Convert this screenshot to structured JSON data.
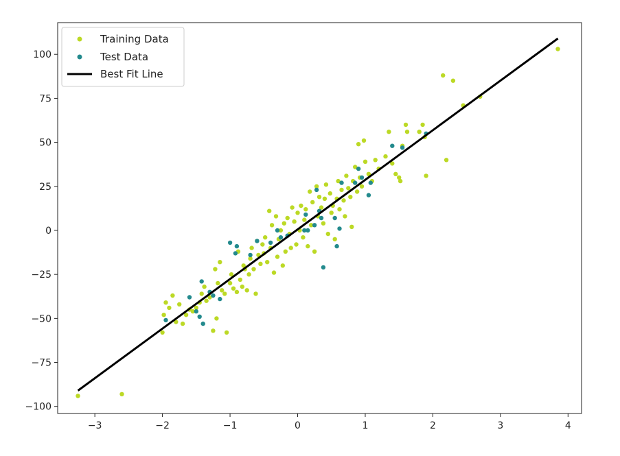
{
  "chart_data": {
    "type": "scatter",
    "title": "",
    "xlabel": "",
    "ylabel": "",
    "xlim": [
      -3.55,
      4.2
    ],
    "ylim": [
      -104,
      118
    ],
    "xticks": [
      -3,
      -2,
      -1,
      0,
      1,
      2,
      3,
      4
    ],
    "yticks": [
      -100,
      -75,
      -50,
      -25,
      0,
      25,
      50,
      75,
      100
    ],
    "xtick_labels": [
      "−3",
      "−2",
      "−1",
      "0",
      "1",
      "2",
      "3",
      "4"
    ],
    "ytick_labels": [
      "−100",
      "−75",
      "−50",
      "−25",
      "0",
      "25",
      "50",
      "75",
      "100"
    ],
    "grid": false,
    "legend_position": "top-left",
    "legend": [
      {
        "label": "Training Data",
        "kind": "marker",
        "color": "#bcd925"
      },
      {
        "label": "Test Data",
        "kind": "marker",
        "color": "#238a8d"
      },
      {
        "label": "Best Fit Line",
        "kind": "line",
        "color": "#000000"
      }
    ],
    "series": [
      {
        "name": "Training Data",
        "color": "#bcd925",
        "points": [
          [
            -3.25,
            -94
          ],
          [
            -2.6,
            -93
          ],
          [
            -2.0,
            -58
          ],
          [
            -1.95,
            -41
          ],
          [
            -1.98,
            -48
          ],
          [
            -1.9,
            -44
          ],
          [
            -1.85,
            -37
          ],
          [
            -1.8,
            -52
          ],
          [
            -1.75,
            -42
          ],
          [
            -1.7,
            -53
          ],
          [
            -1.65,
            -48
          ],
          [
            -1.6,
            -45
          ],
          [
            -1.55,
            -46
          ],
          [
            -1.5,
            -44
          ],
          [
            -1.45,
            -41
          ],
          [
            -1.42,
            -36
          ],
          [
            -1.38,
            -32
          ],
          [
            -1.35,
            -40
          ],
          [
            -1.3,
            -38
          ],
          [
            -1.25,
            -57
          ],
          [
            -1.2,
            -50
          ],
          [
            -1.22,
            -22
          ],
          [
            -1.18,
            -30
          ],
          [
            -1.15,
            -18
          ],
          [
            -1.12,
            -34
          ],
          [
            -1.05,
            -58
          ],
          [
            -1.08,
            -36
          ],
          [
            -1.0,
            -30
          ],
          [
            -0.98,
            -25
          ],
          [
            -0.95,
            -33
          ],
          [
            -0.9,
            -35
          ],
          [
            -0.88,
            -12
          ],
          [
            -0.85,
            -28
          ],
          [
            -0.82,
            -32
          ],
          [
            -0.8,
            -20
          ],
          [
            -0.78,
            -22
          ],
          [
            -0.75,
            -34
          ],
          [
            -0.72,
            -25
          ],
          [
            -0.7,
            -16
          ],
          [
            -0.68,
            -10
          ],
          [
            -0.65,
            -22
          ],
          [
            -0.62,
            -36
          ],
          [
            -0.6,
            -6
          ],
          [
            -0.58,
            -14
          ],
          [
            -0.55,
            -19
          ],
          [
            -0.52,
            -8
          ],
          [
            -0.5,
            -13
          ],
          [
            -0.48,
            -4
          ],
          [
            -0.45,
            -18
          ],
          [
            -0.42,
            11
          ],
          [
            -0.4,
            -10
          ],
          [
            -0.38,
            3
          ],
          [
            -0.35,
            -24
          ],
          [
            -0.32,
            8
          ],
          [
            -0.3,
            -15
          ],
          [
            -0.28,
            -5
          ],
          [
            -0.25,
            0
          ],
          [
            -0.22,
            -20
          ],
          [
            -0.2,
            4
          ],
          [
            -0.18,
            -12
          ],
          [
            -0.15,
            7
          ],
          [
            -0.12,
            -2
          ],
          [
            -0.1,
            -10
          ],
          [
            -0.08,
            13
          ],
          [
            -0.05,
            5
          ],
          [
            -0.02,
            -8
          ],
          [
            0.0,
            10
          ],
          [
            0.03,
            0
          ],
          [
            0.05,
            14
          ],
          [
            0.08,
            -4
          ],
          [
            0.1,
            6
          ],
          [
            0.12,
            12
          ],
          [
            0.15,
            -9
          ],
          [
            0.18,
            22
          ],
          [
            0.2,
            3
          ],
          [
            0.22,
            16
          ],
          [
            0.25,
            -12
          ],
          [
            0.28,
            25
          ],
          [
            0.3,
            8
          ],
          [
            0.32,
            19
          ],
          [
            0.35,
            13
          ],
          [
            0.38,
            4
          ],
          [
            0.4,
            18
          ],
          [
            0.42,
            26
          ],
          [
            0.45,
            -2
          ],
          [
            0.48,
            21
          ],
          [
            0.5,
            10
          ],
          [
            0.52,
            14
          ],
          [
            0.55,
            -5
          ],
          [
            0.58,
            18
          ],
          [
            0.6,
            28
          ],
          [
            0.62,
            12
          ],
          [
            0.65,
            23
          ],
          [
            0.68,
            17
          ],
          [
            0.7,
            8
          ],
          [
            0.72,
            31
          ],
          [
            0.75,
            24
          ],
          [
            0.78,
            19
          ],
          [
            0.8,
            2
          ],
          [
            0.82,
            28
          ],
          [
            0.85,
            36
          ],
          [
            0.88,
            22
          ],
          [
            0.9,
            49
          ],
          [
            0.92,
            30
          ],
          [
            0.95,
            25
          ],
          [
            0.98,
            51
          ],
          [
            1.0,
            39
          ],
          [
            1.05,
            32
          ],
          [
            1.1,
            28
          ],
          [
            1.15,
            40
          ],
          [
            1.2,
            35
          ],
          [
            1.3,
            42
          ],
          [
            1.35,
            56
          ],
          [
            1.4,
            38
          ],
          [
            1.45,
            32
          ],
          [
            1.5,
            30
          ],
          [
            1.52,
            28
          ],
          [
            1.55,
            48
          ],
          [
            1.6,
            60
          ],
          [
            1.62,
            56
          ],
          [
            1.8,
            56
          ],
          [
            1.85,
            60
          ],
          [
            1.9,
            31
          ],
          [
            1.88,
            53
          ],
          [
            2.15,
            88
          ],
          [
            2.2,
            40
          ],
          [
            2.3,
            85
          ],
          [
            2.45,
            71
          ],
          [
            2.7,
            76
          ],
          [
            3.85,
            103
          ]
        ]
      },
      {
        "name": "Test Data",
        "color": "#238a8d",
        "points": [
          [
            -1.95,
            -51
          ],
          [
            -1.6,
            -38
          ],
          [
            -1.5,
            -46
          ],
          [
            -1.45,
            -49
          ],
          [
            -1.42,
            -29
          ],
          [
            -1.4,
            -53
          ],
          [
            -1.3,
            -35
          ],
          [
            -1.25,
            -37
          ],
          [
            -1.15,
            -39
          ],
          [
            -1.0,
            -7
          ],
          [
            -0.92,
            -13
          ],
          [
            -0.9,
            -9
          ],
          [
            -0.7,
            -14
          ],
          [
            -0.6,
            -6
          ],
          [
            -0.4,
            -7
          ],
          [
            -0.3,
            0
          ],
          [
            -0.25,
            -4
          ],
          [
            -0.15,
            -3
          ],
          [
            0.1,
            0
          ],
          [
            0.12,
            9
          ],
          [
            0.15,
            0
          ],
          [
            0.25,
            3
          ],
          [
            0.28,
            23
          ],
          [
            0.32,
            11
          ],
          [
            0.35,
            7
          ],
          [
            0.38,
            -21
          ],
          [
            0.55,
            7
          ],
          [
            0.58,
            -9
          ],
          [
            0.62,
            1
          ],
          [
            0.65,
            27
          ],
          [
            0.85,
            27
          ],
          [
            0.9,
            35
          ],
          [
            0.95,
            30
          ],
          [
            1.05,
            20
          ],
          [
            1.08,
            27
          ],
          [
            1.4,
            48
          ],
          [
            1.55,
            47
          ],
          [
            1.9,
            55
          ]
        ]
      }
    ],
    "fit_line": {
      "name": "Best Fit Line",
      "color": "#000000",
      "x": [
        -3.25,
        3.85
      ],
      "y": [
        -91,
        109
      ]
    }
  }
}
